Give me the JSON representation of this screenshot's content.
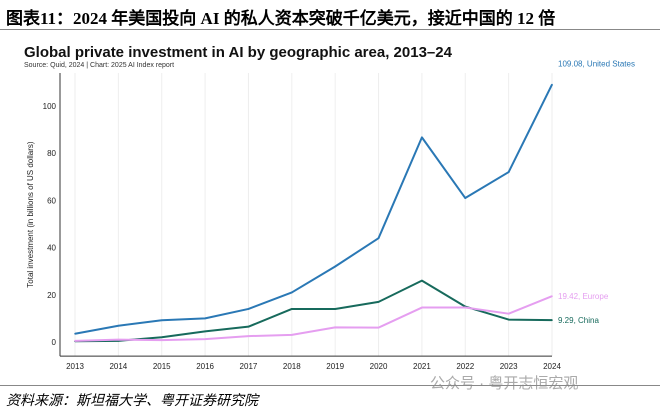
{
  "figure_title": "图表11：2024 年美国投向 AI 的私人资本突破千亿美元，接近中国的 12 倍",
  "source_note": "资料来源：斯坦福大学、粤开证券研究院",
  "watermark": "公众号 · 粤开志恒宏观",
  "chart_data": {
    "type": "line",
    "title": "Global private investment in AI by geographic area, 2013–24",
    "subtitle": "Source: Quid, 2024 | Chart: 2025 AI Index report",
    "xlabel": "",
    "ylabel": "Total investment (in billions of US dollars)",
    "x": [
      2013,
      2014,
      2015,
      2016,
      2017,
      2018,
      2019,
      2020,
      2021,
      2022,
      2023,
      2024
    ],
    "ylim": [
      -6,
      114
    ],
    "yticks": [
      0,
      20,
      40,
      60,
      80,
      100
    ],
    "grid": "vertical",
    "series": [
      {
        "name": "United States",
        "label": "109.08, United States",
        "color": "#2a78b5",
        "values": [
          3.5,
          6.9,
          9.2,
          10.0,
          14.0,
          21.0,
          32.0,
          44.0,
          86.7,
          61.0,
          72.0,
          109.08
        ]
      },
      {
        "name": "China",
        "label": "9.29, China",
        "color": "#176a5c",
        "values": [
          0.3,
          0.5,
          2.0,
          4.5,
          6.5,
          14.0,
          14.0,
          17.0,
          26.0,
          15.0,
          9.5,
          9.29
        ]
      },
      {
        "name": "Europe",
        "label": "19.42, Europe",
        "color": "#e59ef0",
        "values": [
          0.5,
          1.0,
          0.8,
          1.2,
          2.5,
          3.0,
          6.2,
          6.1,
          14.6,
          14.6,
          12.0,
          19.42
        ]
      }
    ]
  }
}
